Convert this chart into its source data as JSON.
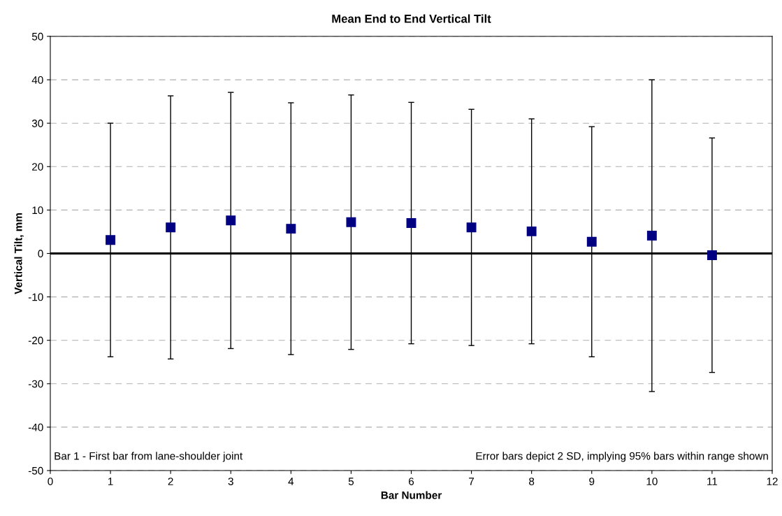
{
  "chart_data": {
    "type": "scatter",
    "title": "Mean End to End Vertical Tilt",
    "xlabel": "Bar Number",
    "ylabel": "Vertical Tilt, mm",
    "x": [
      1,
      2,
      3,
      4,
      5,
      6,
      7,
      8,
      9,
      10,
      11
    ],
    "series": [
      {
        "color": "#000080",
        "values": [
          3.1,
          6.0,
          7.6,
          5.7,
          7.2,
          7.0,
          6.0,
          5.1,
          2.7,
          4.1,
          -0.4
        ],
        "errors": [
          26.9,
          30.3,
          29.5,
          29.0,
          29.3,
          27.8,
          27.2,
          25.9,
          26.5,
          35.9,
          27.0
        ]
      }
    ],
    "xlim": [
      0,
      12
    ],
    "xticks": [
      0,
      1,
      2,
      3,
      4,
      5,
      6,
      7,
      8,
      9,
      10,
      11,
      12
    ],
    "ylim": [
      -50,
      50
    ],
    "yticks": [
      -50,
      -40,
      -30,
      -20,
      -10,
      0,
      10,
      20,
      30,
      40,
      50
    ],
    "ref_lines": [
      {
        "axis": "y",
        "value": 0,
        "color": "#000000"
      }
    ],
    "grid": "y",
    "marker": "square",
    "legend": false,
    "annotations": [
      "Bar 1 - First bar from lane-shoulder joint",
      "Error bars depict 2 SD, implying 95% bars within range shown"
    ]
  }
}
